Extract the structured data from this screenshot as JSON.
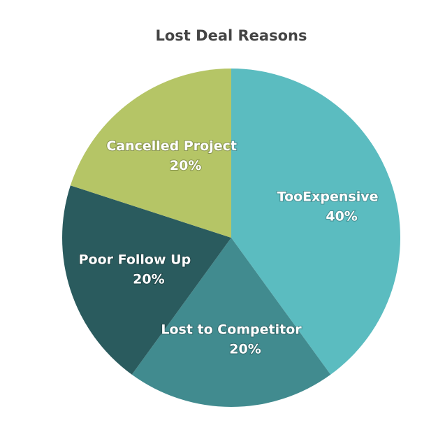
{
  "chart_data": {
    "type": "pie",
    "title": "Lost Deal Reasons",
    "categories": [
      "TooExpensive",
      "Lost to Competitor",
      "Poor Follow Up",
      "Cancelled Project"
    ],
    "values": [
      40,
      20,
      20,
      20
    ],
    "value_labels": [
      "40%",
      "20%",
      "20%",
      "20%"
    ],
    "colors": [
      "#5bbcc0",
      "#418b8f",
      "#2a5b5e",
      "#b5c566"
    ]
  }
}
